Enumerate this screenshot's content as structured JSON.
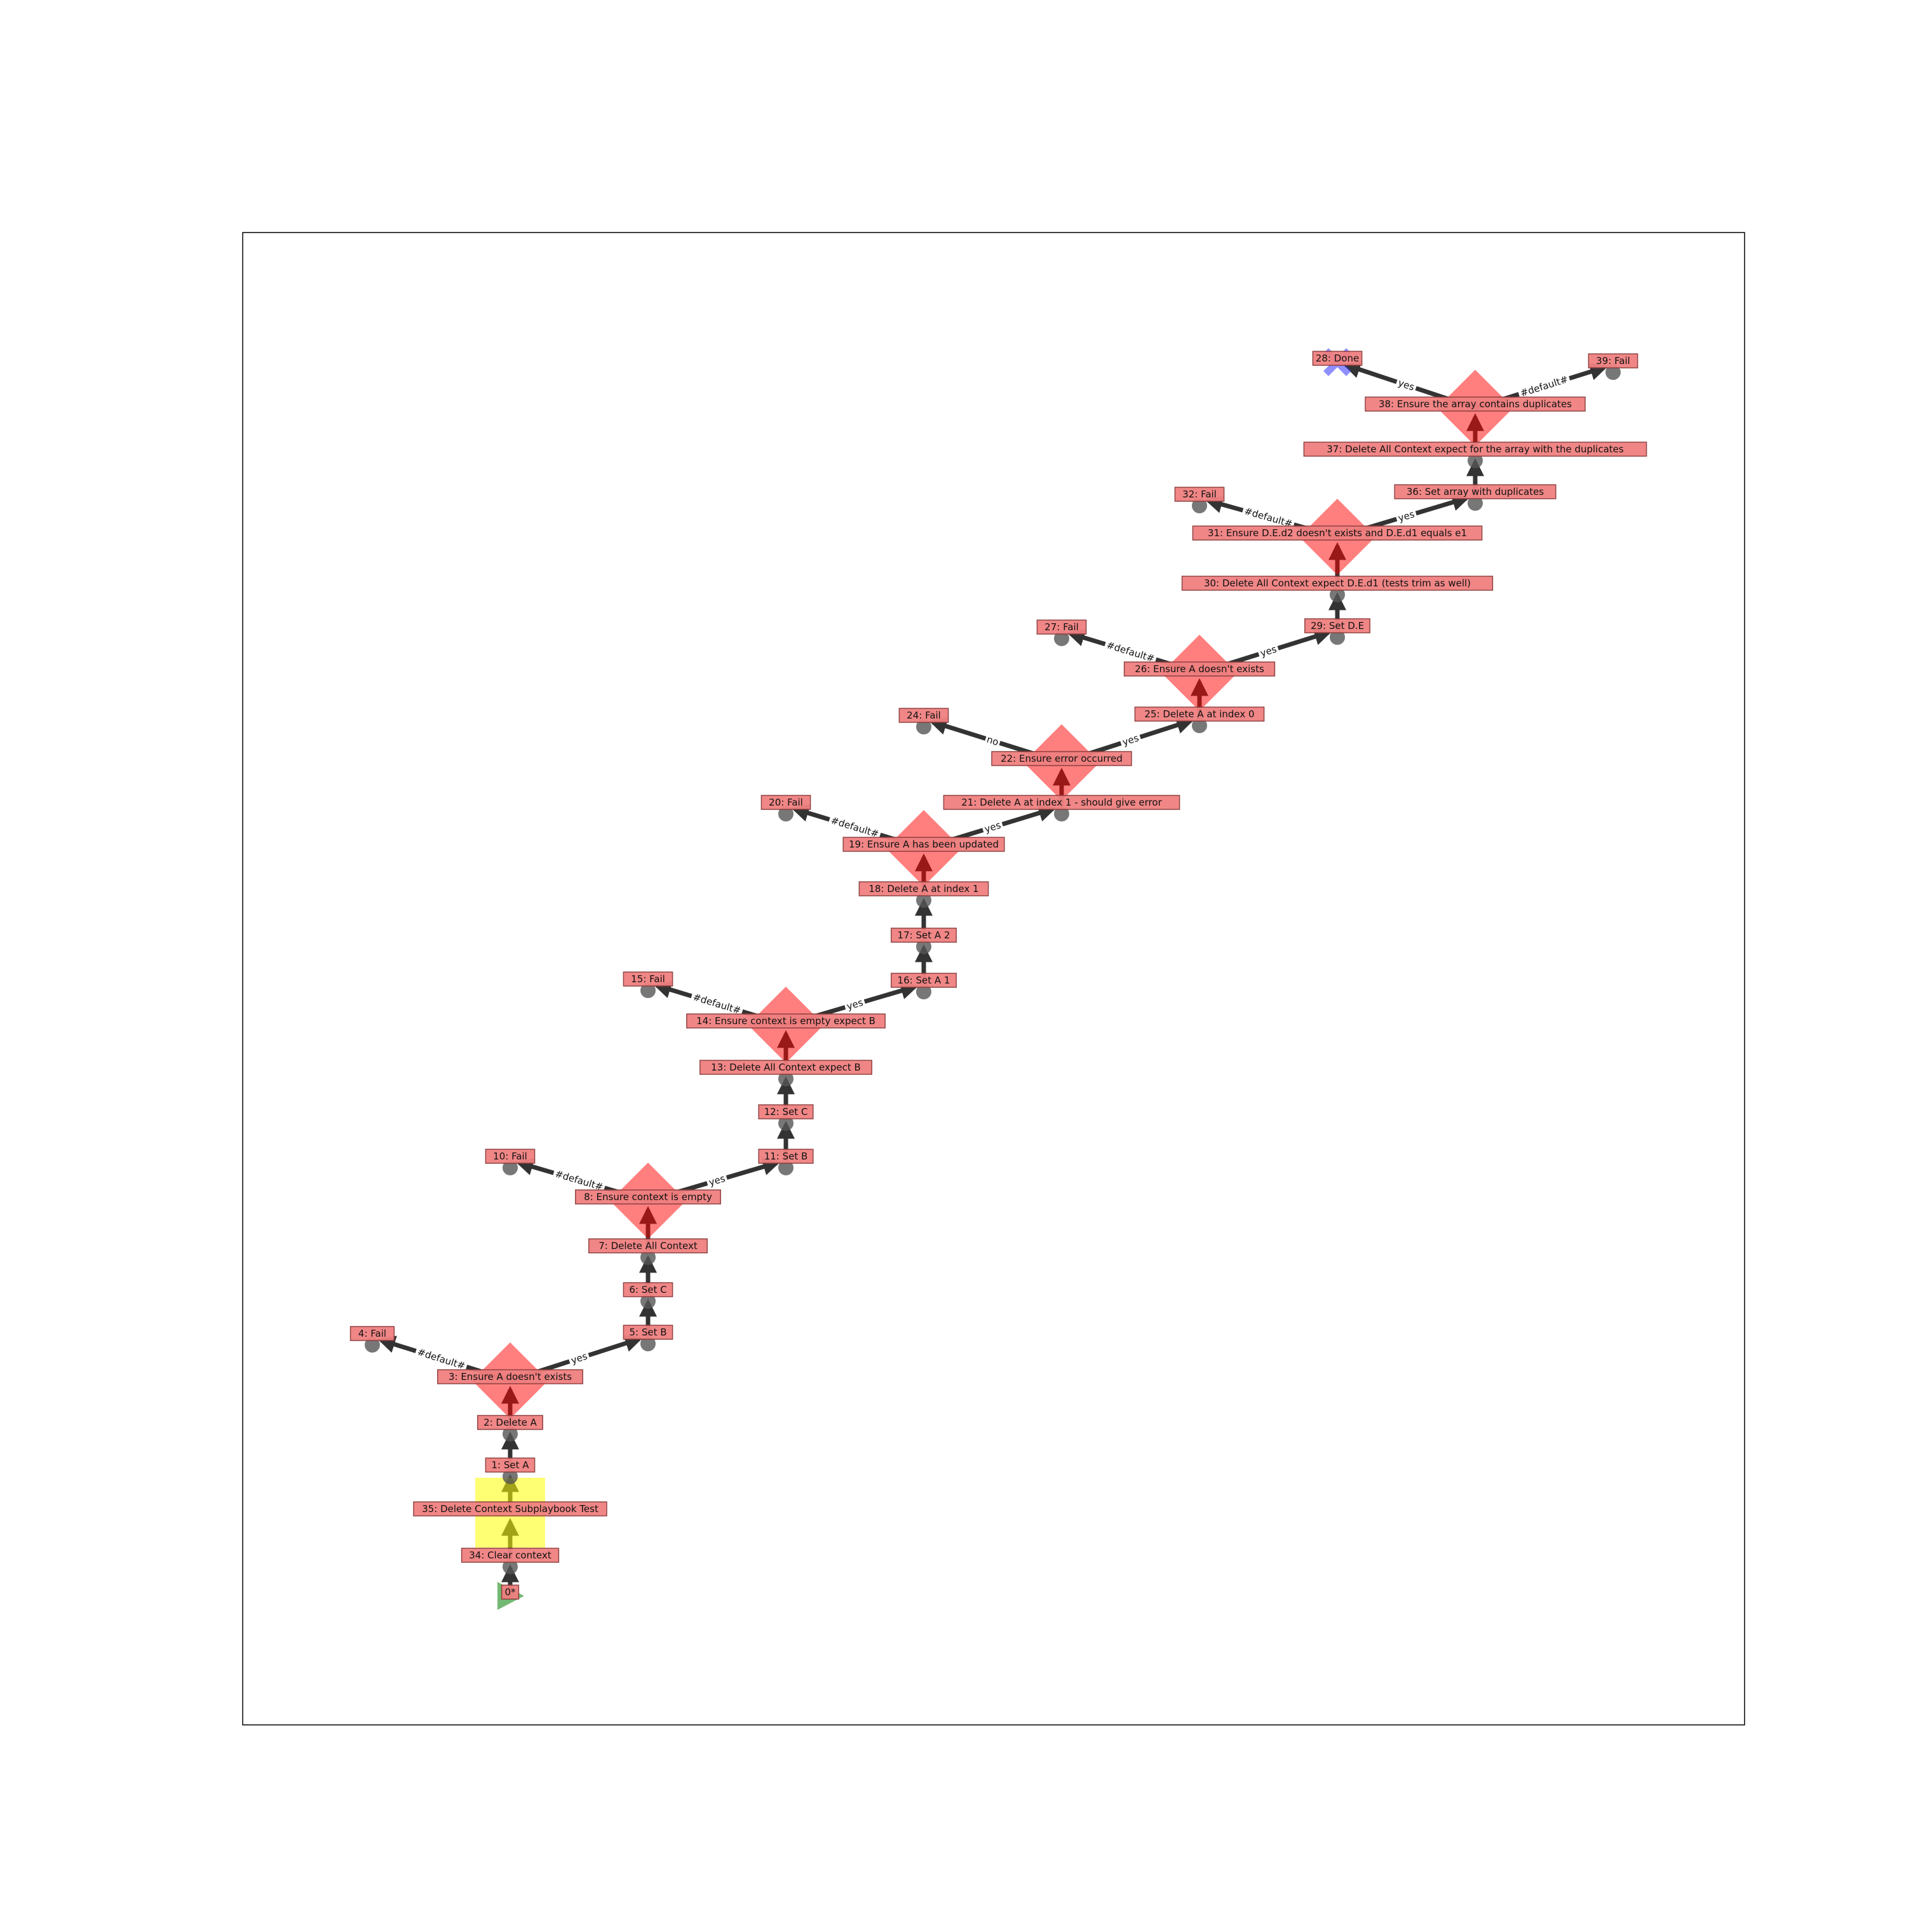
{
  "diagram": {
    "nodes": [
      {
        "id": "0",
        "label": "0*",
        "shape": "start"
      },
      {
        "id": "34",
        "label": "34: Clear context",
        "shape": "circle"
      },
      {
        "id": "35",
        "label": "35: Delete Context Subplaybook Test",
        "shape": "square"
      },
      {
        "id": "1",
        "label": "1: Set A",
        "shape": "circle"
      },
      {
        "id": "2",
        "label": "2: Delete A",
        "shape": "circle"
      },
      {
        "id": "3",
        "label": "3: Ensure A doesn't exists",
        "shape": "diamond"
      },
      {
        "id": "4",
        "label": "4: Fail",
        "shape": "circle"
      },
      {
        "id": "5",
        "label": "5: Set B",
        "shape": "circle"
      },
      {
        "id": "6",
        "label": "6: Set C",
        "shape": "circle"
      },
      {
        "id": "7",
        "label": "7: Delete All Context",
        "shape": "circle"
      },
      {
        "id": "8",
        "label": "8: Ensure context is empty",
        "shape": "diamond"
      },
      {
        "id": "10",
        "label": "10: Fail",
        "shape": "circle"
      },
      {
        "id": "11",
        "label": "11: Set B",
        "shape": "circle"
      },
      {
        "id": "12",
        "label": "12: Set C",
        "shape": "circle"
      },
      {
        "id": "13",
        "label": "13: Delete All Context expect B",
        "shape": "circle"
      },
      {
        "id": "14",
        "label": "14: Ensure context is empty expect B",
        "shape": "diamond"
      },
      {
        "id": "15",
        "label": "15: Fail",
        "shape": "circle"
      },
      {
        "id": "16",
        "label": "16: Set A 1",
        "shape": "circle"
      },
      {
        "id": "17",
        "label": "17: Set A 2",
        "shape": "circle"
      },
      {
        "id": "18",
        "label": "18: Delete A at index 1",
        "shape": "circle"
      },
      {
        "id": "19",
        "label": "19: Ensure A has been updated",
        "shape": "diamond"
      },
      {
        "id": "20",
        "label": "20: Fail",
        "shape": "circle"
      },
      {
        "id": "21",
        "label": "21: Delete A at index 1 - should give error",
        "shape": "circle"
      },
      {
        "id": "22",
        "label": "22: Ensure error occurred",
        "shape": "diamond"
      },
      {
        "id": "24",
        "label": "24: Fail",
        "shape": "circle"
      },
      {
        "id": "25",
        "label": "25: Delete A at index 0",
        "shape": "circle"
      },
      {
        "id": "26",
        "label": "26: Ensure A doesn't exists",
        "shape": "diamond"
      },
      {
        "id": "27",
        "label": "27: Fail",
        "shape": "circle"
      },
      {
        "id": "29",
        "label": "29: Set D.E",
        "shape": "circle"
      },
      {
        "id": "30",
        "label": "30: Delete All Context expect D.E.d1 (tests trim as well)",
        "shape": "circle"
      },
      {
        "id": "31",
        "label": "31: Ensure D.E.d2 doesn't exists and D.E.d1 equals e1",
        "shape": "diamond"
      },
      {
        "id": "32",
        "label": "32: Fail",
        "shape": "circle"
      },
      {
        "id": "36",
        "label": "36: Set array with duplicates",
        "shape": "circle"
      },
      {
        "id": "37",
        "label": "37: Delete All Context expect for the array with the duplicates",
        "shape": "circle"
      },
      {
        "id": "38",
        "label": "38: Ensure the array contains duplicates",
        "shape": "diamond"
      },
      {
        "id": "28",
        "label": "28: Done",
        "shape": "done"
      },
      {
        "id": "39",
        "label": "39: Fail",
        "shape": "circle"
      }
    ],
    "edges": [
      {
        "from": "0",
        "to": "34",
        "label": ""
      },
      {
        "from": "34",
        "to": "35",
        "label": ""
      },
      {
        "from": "35",
        "to": "1",
        "label": ""
      },
      {
        "from": "1",
        "to": "2",
        "label": ""
      },
      {
        "from": "2",
        "to": "3",
        "label": ""
      },
      {
        "from": "3",
        "to": "4",
        "label": "#default#"
      },
      {
        "from": "3",
        "to": "5",
        "label": "yes"
      },
      {
        "from": "5",
        "to": "6",
        "label": ""
      },
      {
        "from": "6",
        "to": "7",
        "label": ""
      },
      {
        "from": "7",
        "to": "8",
        "label": ""
      },
      {
        "from": "8",
        "to": "10",
        "label": "#default#"
      },
      {
        "from": "8",
        "to": "11",
        "label": "yes"
      },
      {
        "from": "11",
        "to": "12",
        "label": ""
      },
      {
        "from": "12",
        "to": "13",
        "label": ""
      },
      {
        "from": "13",
        "to": "14",
        "label": ""
      },
      {
        "from": "14",
        "to": "15",
        "label": "#default#"
      },
      {
        "from": "14",
        "to": "16",
        "label": "yes"
      },
      {
        "from": "16",
        "to": "17",
        "label": ""
      },
      {
        "from": "17",
        "to": "18",
        "label": ""
      },
      {
        "from": "18",
        "to": "19",
        "label": ""
      },
      {
        "from": "19",
        "to": "20",
        "label": "#default#"
      },
      {
        "from": "19",
        "to": "21",
        "label": "yes"
      },
      {
        "from": "21",
        "to": "22",
        "label": ""
      },
      {
        "from": "22",
        "to": "24",
        "label": "no"
      },
      {
        "from": "22",
        "to": "25",
        "label": "yes"
      },
      {
        "from": "25",
        "to": "26",
        "label": ""
      },
      {
        "from": "26",
        "to": "27",
        "label": "#default#"
      },
      {
        "from": "26",
        "to": "29",
        "label": "yes"
      },
      {
        "from": "29",
        "to": "30",
        "label": ""
      },
      {
        "from": "30",
        "to": "31",
        "label": ""
      },
      {
        "from": "31",
        "to": "32",
        "label": "#default#"
      },
      {
        "from": "31",
        "to": "36",
        "label": "yes"
      },
      {
        "from": "36",
        "to": "37",
        "label": ""
      },
      {
        "from": "37",
        "to": "38",
        "label": ""
      },
      {
        "from": "38",
        "to": "28",
        "label": "yes"
      },
      {
        "from": "38",
        "to": "39",
        "label": "#default#"
      }
    ]
  }
}
